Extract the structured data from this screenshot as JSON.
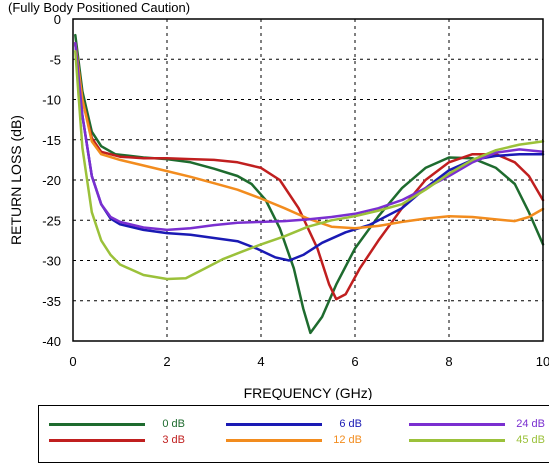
{
  "caption": "(Fully Body Positioned Caution)",
  "chart_data": {
    "type": "line",
    "xlabel": "FREQUENCY (GHz)",
    "ylabel": "RETURN LOSS (dB)",
    "xlim": [
      0,
      10
    ],
    "ylim": [
      -40,
      0
    ],
    "x_ticks": [
      "0",
      "2",
      "4",
      "6",
      "8",
      "10"
    ],
    "y_ticks": [
      "0",
      "-5",
      "-10",
      "-15",
      "-20",
      "-25",
      "-30",
      "-35",
      "-40"
    ],
    "grid": true,
    "legend_position": "bottom",
    "series": [
      {
        "name": "0 dB",
        "color": "#1e6b2e",
        "points": [
          [
            0.05,
            -2
          ],
          [
            0.2,
            -9
          ],
          [
            0.4,
            -14
          ],
          [
            0.6,
            -15.8
          ],
          [
            0.9,
            -16.8
          ],
          [
            1.5,
            -17.2
          ],
          [
            2.0,
            -17.4
          ],
          [
            2.5,
            -17.8
          ],
          [
            3.0,
            -18.6
          ],
          [
            3.5,
            -19.5
          ],
          [
            3.8,
            -20.5
          ],
          [
            4.1,
            -22.5
          ],
          [
            4.4,
            -26
          ],
          [
            4.7,
            -31
          ],
          [
            4.9,
            -36
          ],
          [
            5.05,
            -39
          ],
          [
            5.3,
            -37
          ],
          [
            5.6,
            -33
          ],
          [
            6.0,
            -28.5
          ],
          [
            6.5,
            -24.5
          ],
          [
            7.0,
            -21
          ],
          [
            7.5,
            -18.5
          ],
          [
            8.0,
            -17.2
          ],
          [
            8.5,
            -17.3
          ],
          [
            9.0,
            -18.5
          ],
          [
            9.4,
            -20.5
          ],
          [
            9.7,
            -24
          ],
          [
            10,
            -28
          ]
        ]
      },
      {
        "name": "3 dB",
        "color": "#c01f1f",
        "points": [
          [
            0.05,
            -3
          ],
          [
            0.2,
            -10
          ],
          [
            0.4,
            -14.8
          ],
          [
            0.6,
            -16.5
          ],
          [
            1.0,
            -17.1
          ],
          [
            1.5,
            -17.3
          ],
          [
            2.0,
            -17.3
          ],
          [
            2.5,
            -17.4
          ],
          [
            3.0,
            -17.5
          ],
          [
            3.5,
            -17.8
          ],
          [
            4.0,
            -18.5
          ],
          [
            4.4,
            -20
          ],
          [
            4.8,
            -23.5
          ],
          [
            5.2,
            -28.5
          ],
          [
            5.45,
            -33
          ],
          [
            5.6,
            -34.8
          ],
          [
            5.8,
            -34.2
          ],
          [
            6.1,
            -31
          ],
          [
            6.5,
            -27.5
          ],
          [
            7.0,
            -23.5
          ],
          [
            7.5,
            -20
          ],
          [
            8.0,
            -17.8
          ],
          [
            8.5,
            -16.8
          ],
          [
            9.0,
            -16.8
          ],
          [
            9.4,
            -17.8
          ],
          [
            9.7,
            -19.5
          ],
          [
            10,
            -22.5
          ]
        ]
      },
      {
        "name": "6 dB",
        "color": "#1a1ab4",
        "points": [
          [
            0.05,
            -3
          ],
          [
            0.2,
            -12
          ],
          [
            0.4,
            -19.5
          ],
          [
            0.6,
            -23
          ],
          [
            0.8,
            -24.8
          ],
          [
            1.0,
            -25.5
          ],
          [
            1.5,
            -26.2
          ],
          [
            2.0,
            -26.6
          ],
          [
            2.5,
            -26.8
          ],
          [
            3.0,
            -27.2
          ],
          [
            3.5,
            -27.6
          ],
          [
            3.9,
            -28.5
          ],
          [
            4.3,
            -29.6
          ],
          [
            4.6,
            -30
          ],
          [
            4.9,
            -29.3
          ],
          [
            5.3,
            -27.8
          ],
          [
            5.8,
            -26.5
          ],
          [
            6.3,
            -25.6
          ],
          [
            7.0,
            -23.5
          ],
          [
            7.5,
            -21
          ],
          [
            8.0,
            -18.8
          ],
          [
            8.5,
            -17.5
          ],
          [
            9.0,
            -17
          ],
          [
            9.5,
            -16.8
          ],
          [
            10,
            -16.8
          ]
        ]
      },
      {
        "name": "12 dB",
        "color": "#f28c1e",
        "points": [
          [
            0.05,
            -3
          ],
          [
            0.2,
            -10
          ],
          [
            0.4,
            -15.2
          ],
          [
            0.6,
            -16.8
          ],
          [
            1.0,
            -17.5
          ],
          [
            1.5,
            -18.2
          ],
          [
            2.0,
            -18.9
          ],
          [
            2.5,
            -19.6
          ],
          [
            3.0,
            -20.4
          ],
          [
            3.5,
            -21.2
          ],
          [
            4.0,
            -22.3
          ],
          [
            4.5,
            -23.5
          ],
          [
            5.0,
            -24.8
          ],
          [
            5.5,
            -25.8
          ],
          [
            6.0,
            -26
          ],
          [
            6.5,
            -25.7
          ],
          [
            7.0,
            -25.2
          ],
          [
            7.5,
            -24.8
          ],
          [
            8.0,
            -24.5
          ],
          [
            8.5,
            -24.6
          ],
          [
            9.0,
            -24.9
          ],
          [
            9.4,
            -25.1
          ],
          [
            9.7,
            -24.6
          ],
          [
            10,
            -23.6
          ]
        ]
      },
      {
        "name": "24 dB",
        "color": "#7a2fd0",
        "points": [
          [
            0.05,
            -3
          ],
          [
            0.2,
            -12
          ],
          [
            0.4,
            -19.5
          ],
          [
            0.6,
            -23
          ],
          [
            0.8,
            -24.6
          ],
          [
            1.0,
            -25.2
          ],
          [
            1.5,
            -25.9
          ],
          [
            2.0,
            -26.2
          ],
          [
            2.5,
            -26
          ],
          [
            3.0,
            -25.6
          ],
          [
            3.5,
            -25.3
          ],
          [
            4.0,
            -25.2
          ],
          [
            4.5,
            -25.1
          ],
          [
            5.0,
            -24.9
          ],
          [
            5.5,
            -24.6
          ],
          [
            6.0,
            -24.2
          ],
          [
            6.5,
            -23.5
          ],
          [
            7.0,
            -22.5
          ],
          [
            7.5,
            -21
          ],
          [
            8.0,
            -19.5
          ],
          [
            8.5,
            -17.8
          ],
          [
            9.0,
            -16.6
          ],
          [
            9.5,
            -16.2
          ],
          [
            10,
            -16.5
          ]
        ]
      },
      {
        "name": "45 dB",
        "color": "#9bc13a",
        "points": [
          [
            0.05,
            -4
          ],
          [
            0.2,
            -16
          ],
          [
            0.4,
            -24
          ],
          [
            0.6,
            -27.5
          ],
          [
            0.8,
            -29.3
          ],
          [
            1.0,
            -30.5
          ],
          [
            1.5,
            -31.8
          ],
          [
            2.0,
            -32.3
          ],
          [
            2.4,
            -32.2
          ],
          [
            2.8,
            -31
          ],
          [
            3.2,
            -29.8
          ],
          [
            3.6,
            -28.9
          ],
          [
            4.0,
            -28
          ],
          [
            4.5,
            -27
          ],
          [
            5.0,
            -25.8
          ],
          [
            5.5,
            -25
          ],
          [
            6.0,
            -24.5
          ],
          [
            6.5,
            -23.8
          ],
          [
            7.0,
            -23
          ],
          [
            7.5,
            -21.2
          ],
          [
            8.0,
            -19.2
          ],
          [
            8.5,
            -17.5
          ],
          [
            9.0,
            -16.3
          ],
          [
            9.5,
            -15.6
          ],
          [
            10,
            -15.2
          ]
        ]
      }
    ]
  },
  "legend": {
    "items": [
      {
        "label": "0 dB",
        "color": "#1e6b2e"
      },
      {
        "label": "6 dB",
        "color": "#1a1ab4"
      },
      {
        "label": "24 dB",
        "color": "#7a2fd0"
      },
      {
        "label": "3 dB",
        "color": "#c01f1f"
      },
      {
        "label": "12 dB",
        "color": "#f28c1e"
      },
      {
        "label": "45 dB",
        "color": "#9bc13a"
      }
    ]
  }
}
